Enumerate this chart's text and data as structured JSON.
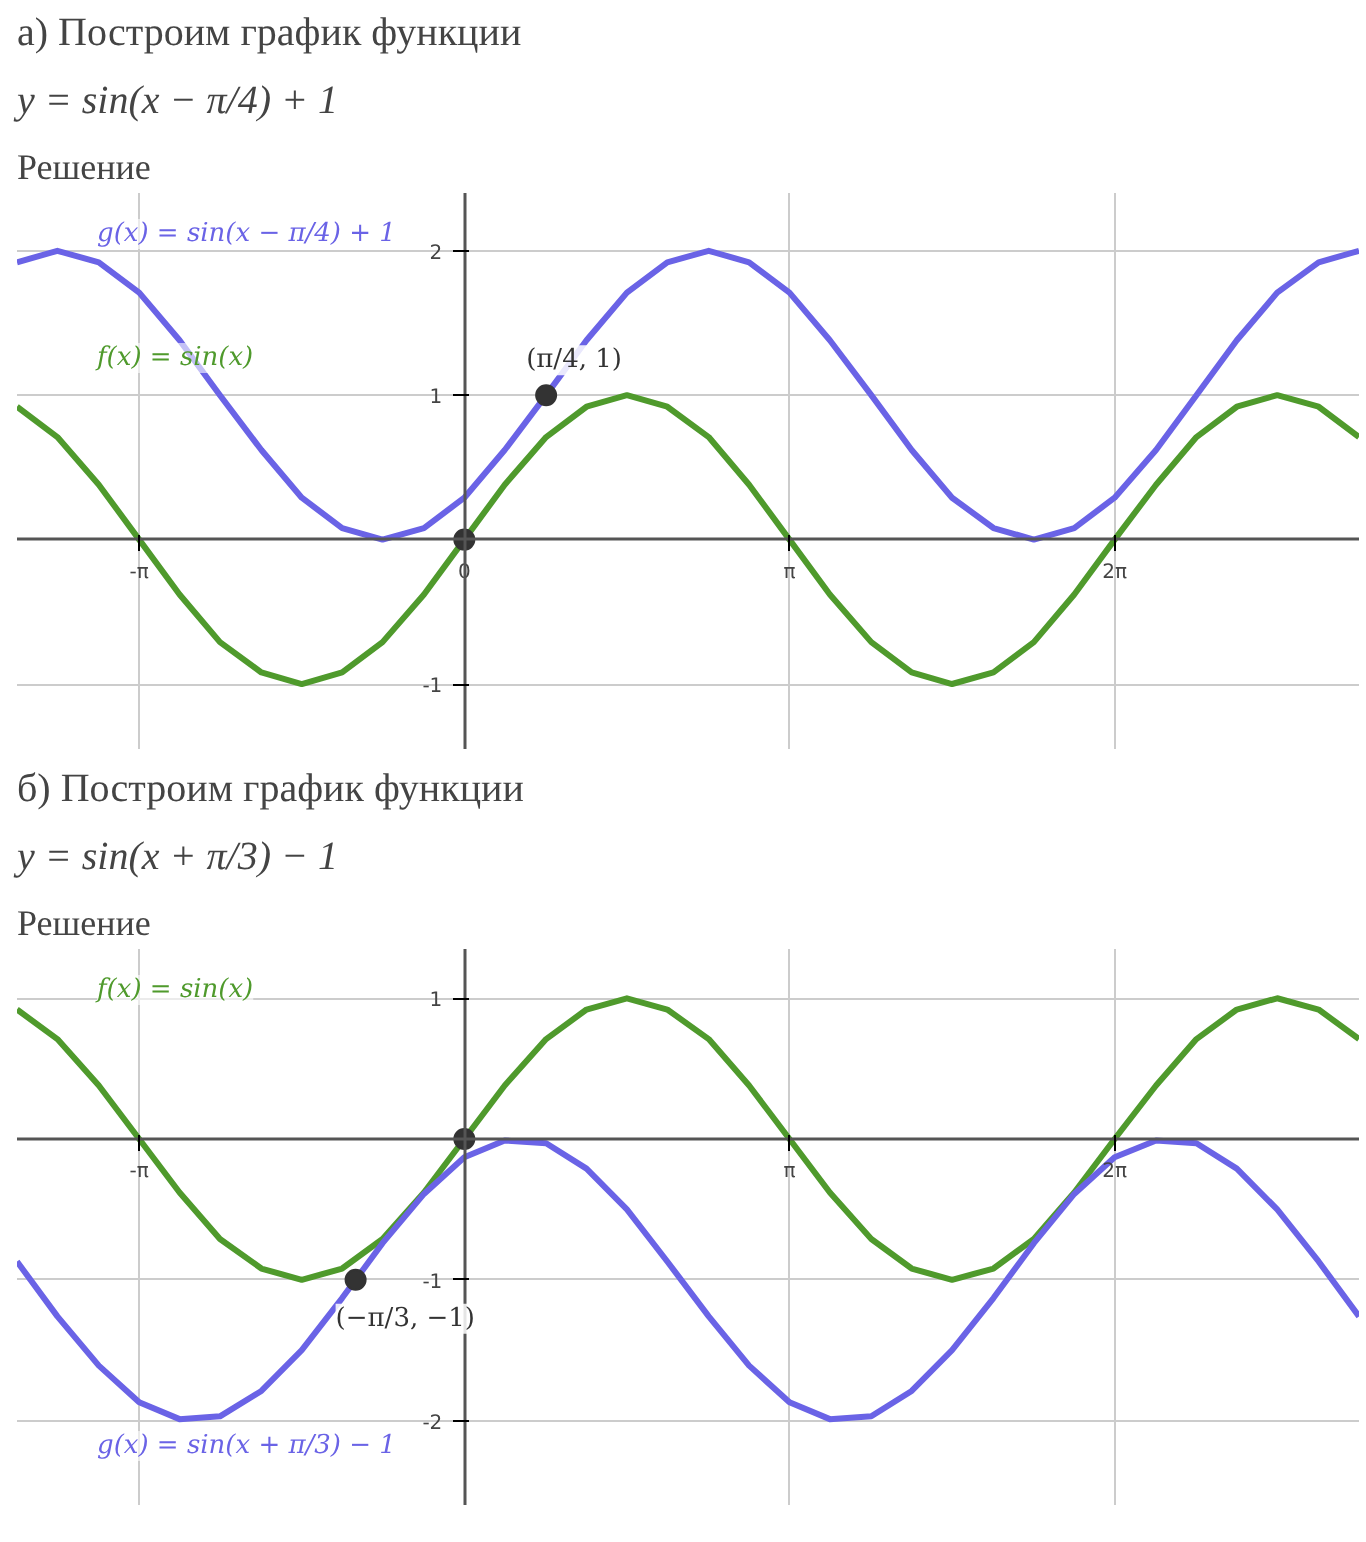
{
  "chart_data": [
    {
      "type": "line",
      "title": "а) Построим график функции",
      "subtitle": "y = sin(x − π/4) + 1",
      "grid": true,
      "annotations": [
        "Решение",
        {
          "text": "(π/4, 1)",
          "x": 0.79,
          "y": 1
        }
      ],
      "x": [
        -4.32,
        -3.93,
        -3.53,
        -3.14,
        -2.75,
        -2.36,
        -1.96,
        -1.57,
        -1.18,
        -0.79,
        -0.39,
        0,
        0.39,
        0.79,
        1.18,
        1.57,
        1.96,
        2.36,
        2.75,
        3.14,
        3.53,
        3.93,
        4.32,
        4.71,
        5.11,
        5.5,
        5.89,
        6.28,
        6.68,
        7.07,
        7.46,
        7.85,
        8.25,
        8.64
      ],
      "xlim": [
        -4.32,
        8.64
      ],
      "ylim": [
        -1.45,
        2.4
      ],
      "xticks": [
        {
          "value": -3.14,
          "label": "-π"
        },
        0,
        {
          "value": 3.14,
          "label": "π"
        },
        {
          "value": 6.28,
          "label": "2π"
        }
      ],
      "yticks": [
        -1,
        1,
        2
      ],
      "series": [
        {
          "name": "g(x) = sin(x − π/4) + 1",
          "color": "#6a63e6",
          "values": [
            1.92,
            2,
            1.92,
            1.71,
            1.38,
            1,
            0.62,
            0.29,
            0.08,
            0,
            0.08,
            0.29,
            0.62,
            1,
            1.38,
            1.71,
            1.92,
            2,
            1.92,
            1.71,
            1.38,
            1,
            0.62,
            0.29,
            0.08,
            0,
            0.08,
            0.29,
            0.62,
            1,
            1.38,
            1.71,
            1.92,
            2
          ]
        },
        {
          "name": "f(x) = sin(x)",
          "color": "#4f9a2c",
          "values": [
            0.92,
            0.71,
            0.38,
            0,
            -0.38,
            -0.71,
            -0.92,
            -1,
            -0.92,
            -0.71,
            -0.38,
            0,
            0.38,
            0.71,
            0.92,
            1,
            0.92,
            0.71,
            0.38,
            0,
            -0.38,
            -0.71,
            -0.92,
            -1,
            -0.92,
            -0.71,
            -0.38,
            0,
            0.38,
            0.71,
            0.92,
            1,
            0.92,
            0.71
          ]
        },
        {
          "type": "scatter",
          "color": "#333333",
          "marker": "circle",
          "x": [
            0,
            0.79
          ],
          "values": [
            0,
            1
          ]
        }
      ]
    },
    {
      "type": "line",
      "title": "б) Построим график функции",
      "subtitle": "y = sin(x + π/3) − 1",
      "grid": true,
      "annotations": [
        "Решение",
        {
          "text": "(−π/3, −1)",
          "x": -1.05,
          "y": -1
        }
      ],
      "x": [
        -4.32,
        -3.93,
        -3.53,
        -3.14,
        -2.75,
        -2.36,
        -1.96,
        -1.57,
        -1.18,
        -0.79,
        -0.39,
        0,
        0.39,
        0.79,
        1.18,
        1.57,
        1.96,
        2.36,
        2.75,
        3.14,
        3.53,
        3.93,
        4.32,
        4.71,
        5.11,
        5.5,
        5.89,
        6.28,
        6.68,
        7.07,
        7.46,
        7.85,
        8.25,
        8.64
      ],
      "xlim": [
        -4.32,
        8.64
      ],
      "ylim": [
        -2.6,
        1.35
      ],
      "xticks": [
        {
          "value": -3.14,
          "label": "-π"
        },
        {
          "value": 3.14,
          "label": "π"
        },
        {
          "value": 6.28,
          "label": "2π"
        }
      ],
      "yticks": [
        -2,
        -1,
        1
      ],
      "series": [
        {
          "name": "f(x) = sin(x)",
          "color": "#4f9a2c",
          "values": [
            0.92,
            0.71,
            0.38,
            0,
            -0.38,
            -0.71,
            -0.92,
            -1,
            -0.92,
            -0.71,
            -0.38,
            0,
            0.38,
            0.71,
            0.92,
            1,
            0.92,
            0.71,
            0.38,
            0,
            -0.38,
            -0.71,
            -0.92,
            -1,
            -0.92,
            -0.71,
            -0.38,
            0,
            0.38,
            0.71,
            0.92,
            1,
            0.92,
            0.71
          ]
        },
        {
          "name": "g(x) = sin(x + π/3) − 1",
          "color": "#6a63e6",
          "values": [
            -0.87,
            -1.26,
            -1.61,
            -1.87,
            -1.99,
            -1.97,
            -1.79,
            -1.5,
            -1.13,
            -0.74,
            -0.39,
            -0.13,
            -0.01,
            -0.03,
            -0.21,
            -0.5,
            -0.87,
            -1.26,
            -1.61,
            -1.87,
            -1.99,
            -1.97,
            -1.79,
            -1.5,
            -1.13,
            -0.74,
            -0.39,
            -0.13,
            -0.01,
            -0.03,
            -0.21,
            -0.5,
            -0.87,
            -1.26
          ]
        },
        {
          "type": "scatter",
          "color": "#333333",
          "marker": "circle",
          "x": [
            0,
            -1.05
          ],
          "values": [
            0,
            -1
          ]
        }
      ]
    }
  ]
}
